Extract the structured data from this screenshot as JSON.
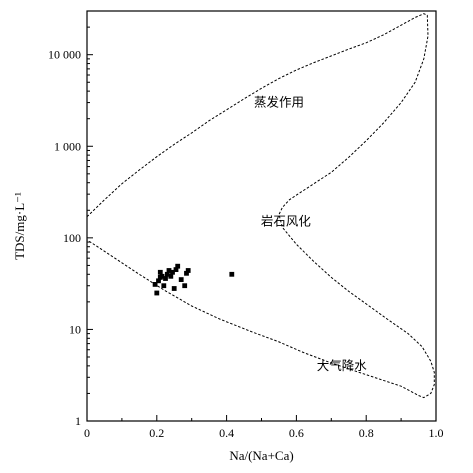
{
  "chart_data": {
    "type": "scatter",
    "title": "",
    "xlabel": "Na/(Na+Ca)",
    "ylabel": "TDS/mg·L⁻¹",
    "xlim": [
      0,
      1
    ],
    "ylim": [
      1,
      30000
    ],
    "y_scale": "log",
    "grid": false,
    "x_ticks": [
      0,
      0.2,
      0.4,
      0.6,
      0.8,
      1.0
    ],
    "x_tick_labels": [
      "0",
      "0.2",
      "0.4",
      "0.6",
      "0.8",
      "1.0"
    ],
    "y_ticks": [
      1,
      10,
      100,
      1000,
      10000
    ],
    "y_tick_labels": [
      "1",
      "10",
      "100",
      "1 000",
      "10 000"
    ],
    "annotations": [
      {
        "text": "蒸发作用",
        "x": 0.55,
        "y": 3000
      },
      {
        "text": "岩石风化",
        "x": 0.57,
        "y": 150
      },
      {
        "text": "大气降水",
        "x": 0.73,
        "y": 4
      }
    ],
    "boundary_curve": [
      [
        0.0,
        170
      ],
      [
        0.05,
        260
      ],
      [
        0.1,
        390
      ],
      [
        0.15,
        550
      ],
      [
        0.2,
        770
      ],
      [
        0.25,
        1050
      ],
      [
        0.3,
        1400
      ],
      [
        0.35,
        1900
      ],
      [
        0.4,
        2500
      ],
      [
        0.45,
        3300
      ],
      [
        0.5,
        4300
      ],
      [
        0.55,
        5500
      ],
      [
        0.6,
        6800
      ],
      [
        0.65,
        8200
      ],
      [
        0.7,
        9700
      ],
      [
        0.75,
        11500
      ],
      [
        0.8,
        13500
      ],
      [
        0.85,
        16500
      ],
      [
        0.9,
        21000
      ],
      [
        0.94,
        25500
      ],
      [
        0.965,
        28000
      ],
      [
        0.975,
        27000
      ],
      [
        0.977,
        16000
      ],
      [
        0.965,
        9000
      ],
      [
        0.94,
        5000
      ],
      [
        0.9,
        3000
      ],
      [
        0.85,
        1800
      ],
      [
        0.8,
        1150
      ],
      [
        0.75,
        760
      ],
      [
        0.7,
        520
      ],
      [
        0.65,
        390
      ],
      [
        0.61,
        310
      ],
      [
        0.58,
        260
      ],
      [
        0.56,
        215
      ],
      [
        0.55,
        180
      ],
      [
        0.56,
        130
      ],
      [
        0.6,
        85
      ],
      [
        0.65,
        55
      ],
      [
        0.7,
        37
      ],
      [
        0.75,
        26
      ],
      [
        0.8,
        19
      ],
      [
        0.86,
        13
      ],
      [
        0.92,
        9
      ],
      [
        0.96,
        6.5
      ],
      [
        0.985,
        4.5
      ],
      [
        0.995,
        3.4
      ],
      [
        0.995,
        2.5
      ],
      [
        0.985,
        2.0
      ],
      [
        0.965,
        1.8
      ],
      [
        0.95,
        1.9
      ],
      [
        0.9,
        2.4
      ],
      [
        0.8,
        3.2
      ],
      [
        0.7,
        4.3
      ],
      [
        0.62,
        5.6
      ],
      [
        0.55,
        7.3
      ],
      [
        0.47,
        9.5
      ],
      [
        0.38,
        13
      ],
      [
        0.3,
        18
      ],
      [
        0.22,
        27
      ],
      [
        0.15,
        40
      ],
      [
        0.08,
        60
      ],
      [
        0.03,
        80
      ],
      [
        0.0,
        95
      ]
    ],
    "series": [
      {
        "points": [
          [
            0.195,
            31
          ],
          [
            0.2,
            25
          ],
          [
            0.205,
            34
          ],
          [
            0.21,
            37
          ],
          [
            0.21,
            42
          ],
          [
            0.215,
            38
          ],
          [
            0.22,
            30
          ],
          [
            0.225,
            36
          ],
          [
            0.23,
            40
          ],
          [
            0.235,
            44
          ],
          [
            0.24,
            38
          ],
          [
            0.245,
            42
          ],
          [
            0.25,
            28
          ],
          [
            0.255,
            45
          ],
          [
            0.26,
            49
          ],
          [
            0.27,
            35
          ],
          [
            0.28,
            30
          ],
          [
            0.285,
            41
          ],
          [
            0.29,
            44
          ],
          [
            0.415,
            40
          ]
        ]
      }
    ]
  }
}
